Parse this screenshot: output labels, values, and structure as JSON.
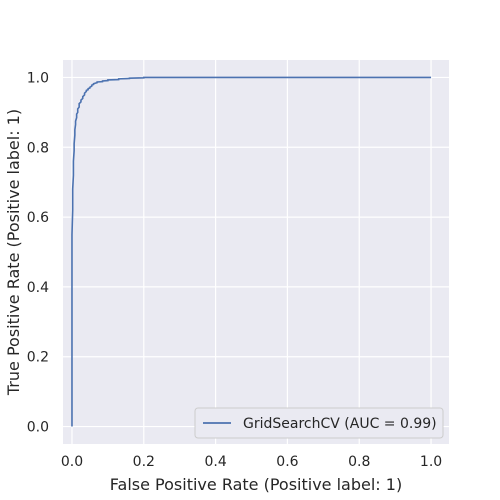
{
  "chart_data": {
    "type": "line",
    "xlabel": "False Positive Rate (Positive label: 1)",
    "ylabel": "True Positive Rate (Positive label: 1)",
    "xlim": [
      -0.025,
      1.05
    ],
    "ylim": [
      -0.05,
      1.05
    ],
    "xticks": [
      "0.0",
      "0.2",
      "0.4",
      "0.6",
      "0.8",
      "1.0"
    ],
    "yticks": [
      "0.0",
      "0.2",
      "0.4",
      "0.6",
      "0.8",
      "1.0"
    ],
    "grid": true,
    "legend_position": "lower-right",
    "colors": {
      "background": "#eaeaf2",
      "grid": "#ffffff",
      "line": "#4c72b0"
    },
    "series": [
      {
        "name": "GridSearchCV (AUC = 0.99)",
        "x": [
          0.0,
          0.0,
          0.0,
          0.002,
          0.002,
          0.004,
          0.004,
          0.006,
          0.006,
          0.008,
          0.008,
          0.01,
          0.01,
          0.013,
          0.013,
          0.016,
          0.016,
          0.02,
          0.02,
          0.025,
          0.025,
          0.03,
          0.03,
          0.035,
          0.035,
          0.04,
          0.04,
          0.045,
          0.045,
          0.05,
          0.05,
          0.055,
          0.055,
          0.06,
          0.06,
          0.07,
          0.07,
          0.085,
          0.085,
          0.1,
          0.1,
          0.13,
          0.13,
          0.16,
          0.16,
          0.2,
          0.2,
          1.0
        ],
        "y": [
          0.0,
          0.3,
          0.55,
          0.62,
          0.68,
          0.72,
          0.76,
          0.79,
          0.81,
          0.835,
          0.85,
          0.865,
          0.875,
          0.885,
          0.895,
          0.9,
          0.91,
          0.915,
          0.925,
          0.93,
          0.935,
          0.94,
          0.945,
          0.95,
          0.955,
          0.96,
          0.963,
          0.965,
          0.968,
          0.97,
          0.972,
          0.975,
          0.978,
          0.98,
          0.982,
          0.985,
          0.987,
          0.988,
          0.99,
          0.991,
          0.993,
          0.994,
          0.996,
          0.997,
          0.998,
          0.999,
          1.0,
          1.0
        ]
      }
    ]
  }
}
